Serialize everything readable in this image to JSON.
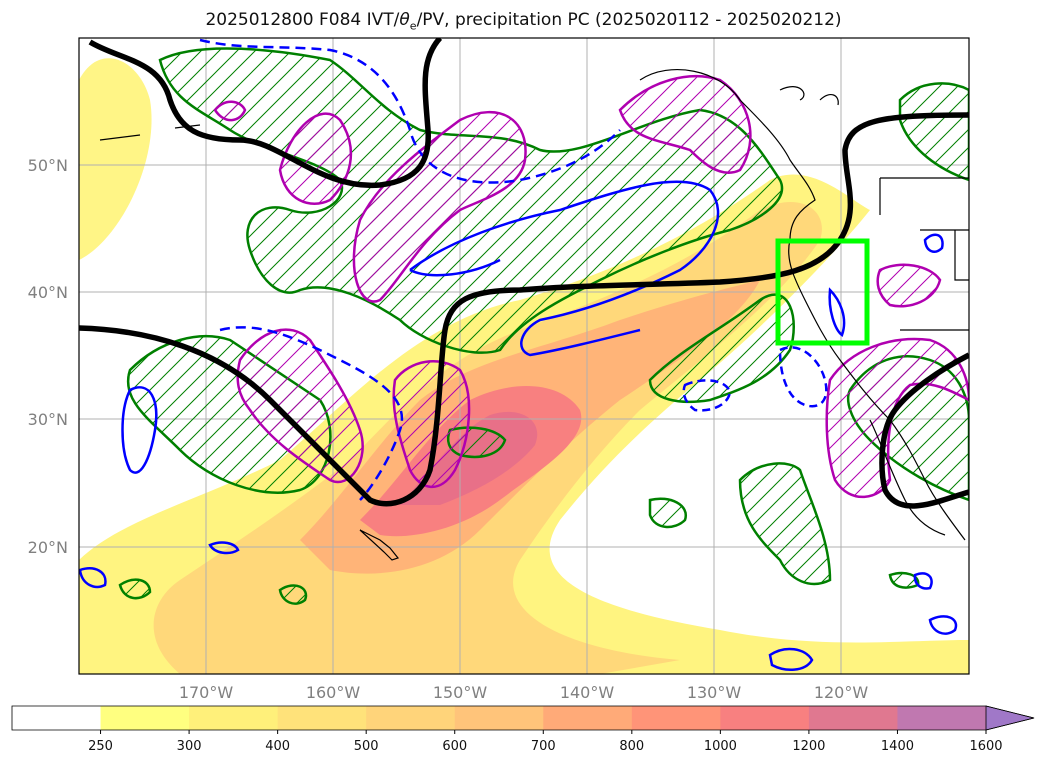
{
  "title": {
    "prefix": "2025012800 F084 IVT/",
    "theta": "θ",
    "theta_sub": "e",
    "suffix": "/PV, precipitation PC (2025020112 - 2025020212)"
  },
  "axes": {
    "lat_labels": [
      "50°N",
      "40°N",
      "30°N",
      "20°N"
    ],
    "lon_labels": [
      "170°W",
      "160°W",
      "150°W",
      "140°W",
      "130°W",
      "120°W"
    ]
  },
  "colorbar": {
    "levels": [
      "250",
      "300",
      "400",
      "500",
      "600",
      "700",
      "800",
      "1000",
      "1200",
      "1400",
      "1600"
    ],
    "colors": [
      "#ffff80",
      "#fff07a",
      "#ffe27a",
      "#ffd47a",
      "#ffc47a",
      "#ffaa78",
      "#ff9478",
      "#f88080",
      "#e07890",
      "#c078b0",
      "#a078c8"
    ],
    "extend": "max"
  },
  "colors": {
    "ivt_low": "#ffff80",
    "ivt_mid": "#ffd47a",
    "ivt_high": "#f88080",
    "pv_line": "#000000",
    "theta_e_line": "#0000ff",
    "green_contour": "#008000",
    "magenta_contour": "#b000b0",
    "target_box": "#00ff00",
    "gridline": "#b0b0b0"
  },
  "map_features": {
    "projection": "PlateCarree",
    "lat_range": [
      10,
      60
    ],
    "lon_range": [
      -180,
      -110
    ],
    "target_box": {
      "lon": [
        -125,
        -118
      ],
      "lat": [
        36,
        44
      ]
    }
  },
  "icons": {
    "colorbar_arrow": "triangle-right"
  }
}
